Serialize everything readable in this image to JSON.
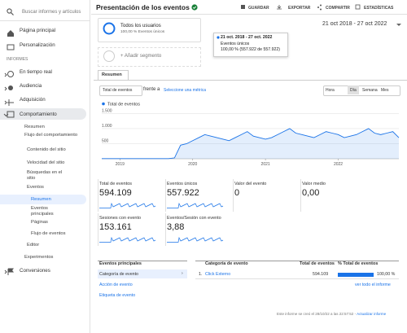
{
  "search_placeholder": "Buscar informes y artículos",
  "sidebar": [
    "Página principal",
    "Personalización",
    "INFORMES",
    "En tiempo real",
    "Audiencia",
    "Adquisición",
    "Comportamiento",
    "Resumen",
    "Flujo del comportamiento",
    "Contenido del sitio",
    "Velocidad del sitio",
    "Búsquedas en el sitio",
    "Eventos",
    "Resumen",
    "Eventos principales",
    "Páginas",
    "Flujo de eventos",
    "Editor",
    "Experimentos",
    "Conversiones"
  ],
  "header": {
    "title": "Presentación de los eventos",
    "actions": [
      "GUARDAR",
      "EXPORTAR",
      "COMPARTIR",
      "ESTADÍSTICAS"
    ]
  },
  "segment": {
    "name": "Todos los usuarios",
    "detail": "100,00 % Eventos únicos",
    "add": "+ Añadir segmento"
  },
  "tooltip": {
    "date": "21 oct. 2018 - 27 oct. 2022",
    "metric": "Eventos únicos",
    "value": "100,00 % (557.922 de 557.922)"
  },
  "date_range": "21 oct 2018 - 27 oct 2022",
  "tab": "Resumen",
  "controls": {
    "metric": "Total de eventos",
    "versus": "frente a",
    "select": "Seleccione una métrica",
    "granularity": [
      "Hora",
      "Día",
      "Semana",
      "Mes"
    ]
  },
  "chart_data": {
    "type": "line",
    "series": [
      {
        "name": "Total de eventos",
        "color": "#1a73e8",
        "values": [
          5,
          5,
          5,
          5,
          5,
          5,
          5,
          5,
          5,
          5,
          5,
          5,
          30,
          450,
          500,
          600,
          700,
          800,
          750,
          700,
          650,
          600,
          700,
          800,
          900,
          750,
          700,
          650,
          700,
          800,
          900,
          1000,
          850,
          800,
          750,
          700,
          800,
          900,
          850,
          800,
          700,
          750,
          800,
          900,
          1000,
          850,
          800,
          850,
          900,
          700
        ]
      }
    ],
    "xlim": [
      0,
      49
    ],
    "xticks": [
      {
        "value": 3,
        "label": "2019"
      },
      {
        "value": 15,
        "label": "2020"
      },
      {
        "value": 27,
        "label": "2021"
      },
      {
        "value": 39,
        "label": "2022"
      }
    ],
    "ylim": [
      0,
      1700
    ],
    "yticks": [
      500,
      {
        "value": 1000,
        "label": "1.000"
      },
      {
        "value": 1500,
        "label": "1.500"
      }
    ],
    "grid": true
  },
  "scorecards": [
    {
      "label": "Total de eventos",
      "value": "594.109"
    },
    {
      "label": "Eventos únicos",
      "value": "557.922"
    },
    {
      "label": "Valor del evento",
      "value": "0"
    },
    {
      "label": "Valor medio",
      "value": "0,00"
    },
    {
      "label": "Sesiones con evento",
      "value": "153.161"
    },
    {
      "label": "Eventos/Sesión con evento",
      "value": "3,88"
    }
  ],
  "top_events": {
    "title": "Eventos principales",
    "options": [
      "Categoría de evento",
      "Acción de evento",
      "Etiqueta de evento"
    ]
  },
  "table": {
    "headers": [
      "Categoría de evento",
      "Total de eventos",
      "% Total de eventos"
    ],
    "rows": [
      [
        "1.",
        "Click Externo",
        "594.109",
        "100,00 %"
      ]
    ],
    "link": "ver todo el informe"
  },
  "footer": {
    "note": "Este informe se creó el 28/10/22 a las 22:57:52",
    "refresh": "Actualizar informe"
  }
}
